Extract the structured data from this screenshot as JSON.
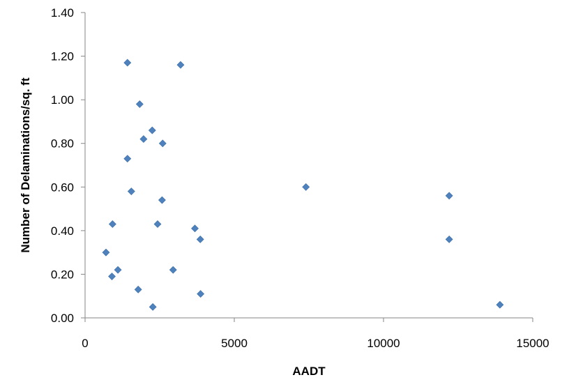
{
  "chart_data": {
    "type": "scatter",
    "title": "",
    "xlabel": "AADT",
    "ylabel": "Number of Delaminations/sq. ft",
    "xlim": [
      0,
      15000
    ],
    "ylim": [
      0,
      1.4
    ],
    "x_ticks": [
      "0",
      "5000",
      "10000",
      "15000"
    ],
    "y_ticks": [
      "0.00",
      "0.20",
      "0.40",
      "0.60",
      "0.80",
      "1.00",
      "1.20",
      "1.40"
    ],
    "grid": false,
    "legend": "none",
    "marker": "diamond",
    "color": "#4F81BD",
    "series": [
      {
        "points": [
          {
            "x": 700,
            "y": 0.3
          },
          {
            "x": 900,
            "y": 0.19
          },
          {
            "x": 920,
            "y": 0.43
          },
          {
            "x": 1100,
            "y": 0.22
          },
          {
            "x": 1420,
            "y": 1.17
          },
          {
            "x": 1420,
            "y": 0.73
          },
          {
            "x": 1550,
            "y": 0.58
          },
          {
            "x": 1780,
            "y": 0.13
          },
          {
            "x": 1830,
            "y": 0.98
          },
          {
            "x": 1960,
            "y": 0.82
          },
          {
            "x": 2250,
            "y": 0.86
          },
          {
            "x": 2270,
            "y": 0.05
          },
          {
            "x": 2430,
            "y": 0.43
          },
          {
            "x": 2580,
            "y": 0.54
          },
          {
            "x": 2600,
            "y": 0.8
          },
          {
            "x": 2950,
            "y": 0.22
          },
          {
            "x": 3200,
            "y": 1.16
          },
          {
            "x": 3680,
            "y": 0.41
          },
          {
            "x": 3860,
            "y": 0.36
          },
          {
            "x": 3870,
            "y": 0.11
          },
          {
            "x": 7400,
            "y": 0.6
          },
          {
            "x": 12200,
            "y": 0.56
          },
          {
            "x": 12200,
            "y": 0.36
          },
          {
            "x": 13900,
            "y": 0.06
          }
        ]
      }
    ]
  }
}
